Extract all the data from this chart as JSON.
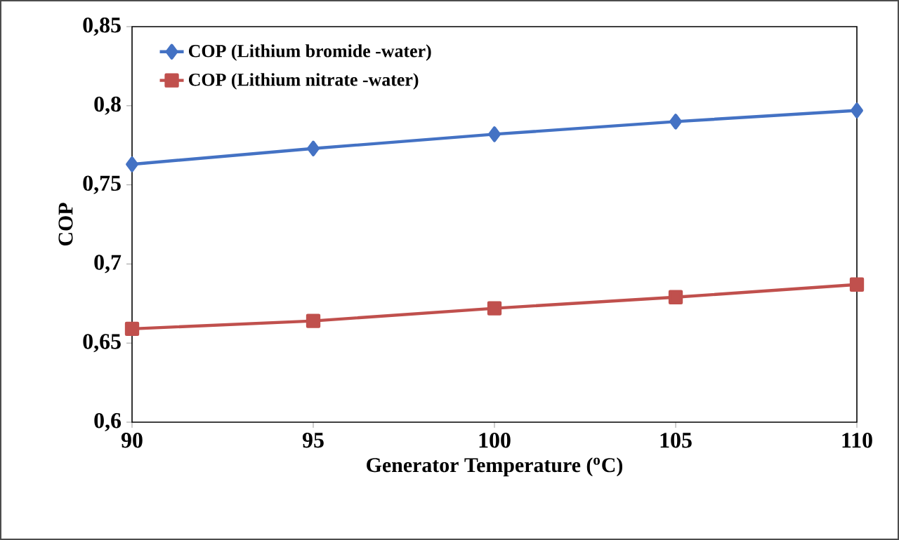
{
  "chart_data": {
    "type": "line",
    "xlabel": "Generator Temperature ($^{o}$C)",
    "ylabel": "COP",
    "x": [
      90,
      95,
      100,
      105,
      110
    ],
    "series": [
      {
        "name": "COP (Lithium bromide -water)",
        "color": "#4472c4",
        "marker": "diamond",
        "values": [
          0.763,
          0.773,
          0.782,
          0.79,
          0.797
        ]
      },
      {
        "name": "COP (Lithium nitrate -water)",
        "color": "#c0504d",
        "marker": "square",
        "values": [
          0.659,
          0.664,
          0.672,
          0.679,
          0.687
        ]
      }
    ],
    "xlim": [
      90,
      110
    ],
    "xticks": [
      90,
      95,
      100,
      105,
      110
    ],
    "ylim": [
      0.6,
      0.85
    ],
    "yticks": [
      {
        "value": 0.6,
        "label": "0,6"
      },
      {
        "value": 0.65,
        "label": "0,65"
      },
      {
        "value": 0.7,
        "label": "0,7"
      },
      {
        "value": 0.75,
        "label": "0,75"
      },
      {
        "value": 0.8,
        "label": "0,8"
      },
      {
        "value": 0.85,
        "label": "0,85"
      }
    ],
    "grid": false,
    "legend": "top left",
    "line_style": "solid"
  }
}
